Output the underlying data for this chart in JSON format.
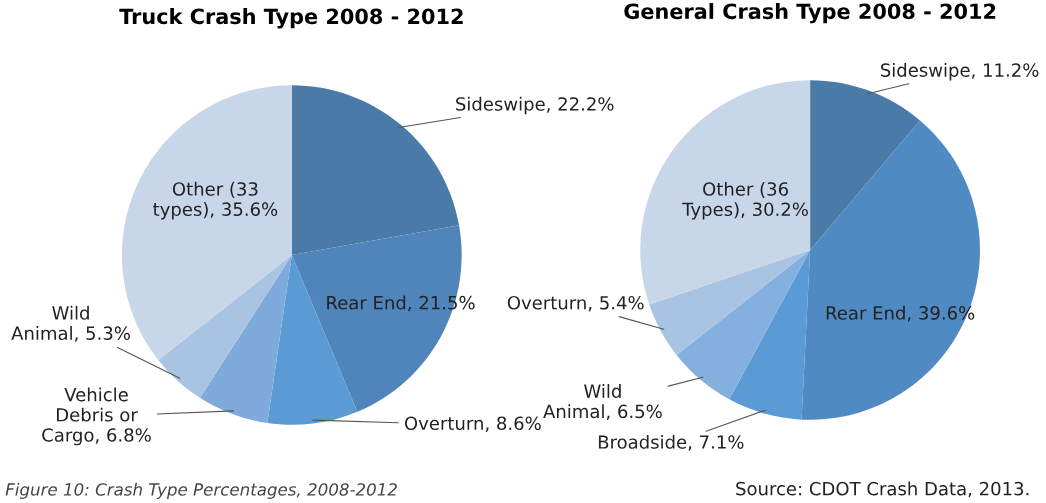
{
  "chart_data": [
    {
      "type": "pie",
      "title": "Truck Crash Type 2008 - 2012",
      "categories": [
        "Sideswipe",
        "Rear End",
        "Overturn",
        "Vehicle Debris or Cargo",
        "Wild Animal",
        "Other (33 types)"
      ],
      "values": [
        22.2,
        21.5,
        8.6,
        6.8,
        5.3,
        35.6
      ],
      "value_labels": [
        "22.2%",
        "21.5%",
        "8.6%",
        "6.8%",
        "5.3%",
        "35.6%"
      ],
      "colors": [
        "#4a7aa8",
        "#4f85bb",
        "#5b9bd5",
        "#7eabdc",
        "#a9c3e3",
        "#c8d6e9"
      ],
      "annotations": [
        "Figure 10: Crash Type Percentages, 2008-2012"
      ]
    },
    {
      "type": "pie",
      "title": "General Crash Type 2008 - 2012",
      "categories": [
        "Sideswipe",
        "Rear End",
        "Broadside",
        "Wild Animal",
        "Overturn",
        "Other (36 Types)"
      ],
      "values": [
        11.2,
        39.6,
        7.1,
        6.5,
        5.4,
        30.2
      ],
      "value_labels": [
        "11.2%",
        "39.6%",
        "7.1%",
        "6.5%",
        "5.4%",
        "30.2%"
      ],
      "colors": [
        "#4a7aa8",
        "#4f8ac2",
        "#5b9bd5",
        "#84b0df",
        "#a9c3e3",
        "#c8d6e9"
      ],
      "annotations": [
        "Source: CDOT Crash Data, 2013."
      ]
    }
  ]
}
